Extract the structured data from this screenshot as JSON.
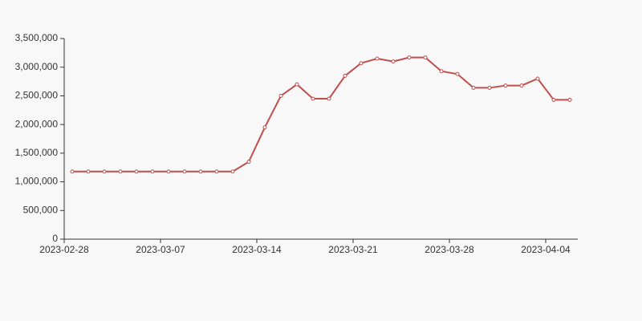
{
  "chart_data": {
    "type": "line",
    "categories": [
      "2023-02-28",
      null,
      null,
      null,
      null,
      null,
      "2023-03-07",
      null,
      null,
      null,
      null,
      null,
      "2023-03-14",
      null,
      null,
      null,
      null,
      null,
      "2023-03-21",
      null,
      null,
      null,
      null,
      null,
      "2023-03-28",
      null,
      null,
      null,
      null,
      null,
      "2023-04-04",
      null
    ],
    "values": [
      1180000,
      1180000,
      1180000,
      1180000,
      1180000,
      1180000,
      1180000,
      1180000,
      1180000,
      1180000,
      1180000,
      1350000,
      1950000,
      2500000,
      2700000,
      2450000,
      2450000,
      2850000,
      3070000,
      3150000,
      3100000,
      3170000,
      3170000,
      2930000,
      2880000,
      2640000,
      2640000,
      2680000,
      2680000,
      2800000,
      2430000,
      2430000
    ],
    "color": "#c14e4e",
    "ylim": [
      0,
      3500000
    ],
    "yticks": [
      0,
      {
        "value": 500000,
        "label": "500,000"
      },
      {
        "value": 1000000,
        "label": "1,000,000"
      },
      {
        "value": 1500000,
        "label": "1,500,000"
      },
      {
        "value": 2000000,
        "label": "2,000,000"
      },
      {
        "value": 2500000,
        "label": "2,500,000"
      },
      {
        "value": 3000000,
        "label": "3,000,000"
      },
      {
        "value": 3500000,
        "label": "3,500,000"
      }
    ]
  }
}
